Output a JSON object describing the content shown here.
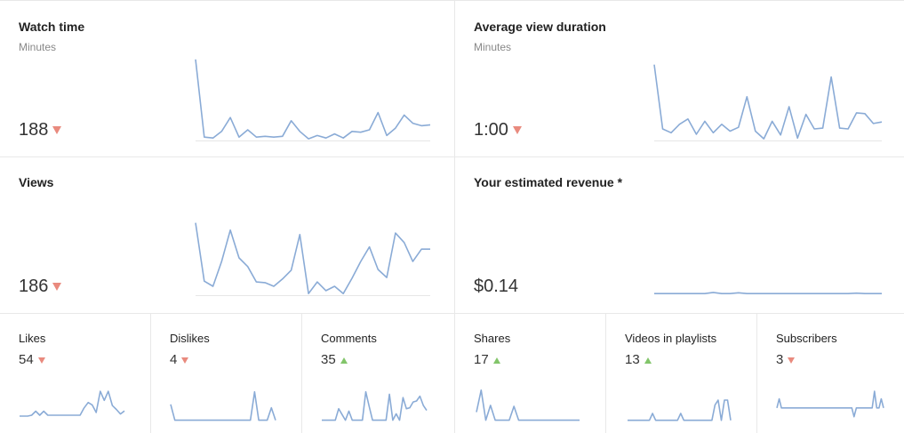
{
  "colors": {
    "line": "#8aabd6",
    "baseline": "#e6e6e6",
    "down": "#e98a7e",
    "up": "#82c56a"
  },
  "cards": {
    "watch_time": {
      "title": "Watch time",
      "subtitle": "Minutes",
      "value": "188",
      "trend": "down-icon",
      "spark": [
        0.98,
        0.03,
        0.02,
        0.1,
        0.27,
        0.03,
        0.12,
        0.03,
        0.04,
        0.03,
        0.04,
        0.23,
        0.1,
        0.01,
        0.05,
        0.02,
        0.07,
        0.02,
        0.1,
        0.09,
        0.12,
        0.33,
        0.05,
        0.14,
        0.3,
        0.2,
        0.17,
        0.18
      ]
    },
    "avg_view_duration": {
      "title": "Average view duration",
      "subtitle": "Minutes",
      "value": "1:00",
      "trend": "down-icon",
      "spark": [
        0.98,
        0.14,
        0.09,
        0.2,
        0.27,
        0.07,
        0.24,
        0.09,
        0.2,
        0.11,
        0.16,
        0.56,
        0.11,
        0.01,
        0.24,
        0.06,
        0.43,
        0.02,
        0.33,
        0.14,
        0.15,
        0.82,
        0.15,
        0.14,
        0.35,
        0.34,
        0.21,
        0.23
      ]
    },
    "views": {
      "title": "Views",
      "value": "186",
      "trend": "down-icon",
      "spark": [
        0.98,
        0.18,
        0.11,
        0.45,
        0.88,
        0.5,
        0.38,
        0.17,
        0.16,
        0.11,
        0.21,
        0.33,
        0.82,
        0.01,
        0.17,
        0.05,
        0.11,
        0.01,
        0.22,
        0.45,
        0.65,
        0.34,
        0.23,
        0.84,
        0.71,
        0.45,
        0.62,
        0.62
      ]
    },
    "revenue": {
      "title": "Your estimated revenue *",
      "value": "$0.14",
      "spark": [
        0.02,
        0.02,
        0.02,
        0.02,
        0.02,
        0.02,
        0.02,
        0.05,
        0.02,
        0.02,
        0.04,
        0.02,
        0.02,
        0.02,
        0.02,
        0.02,
        0.02,
        0.02,
        0.02,
        0.02,
        0.02,
        0.02,
        0.02,
        0.02,
        0.03,
        0.02,
        0.02,
        0.02
      ]
    },
    "likes": {
      "title": "Likes",
      "value": "54",
      "trend": "down-icon",
      "spark": [
        0.03,
        0.03,
        0.03,
        0.06,
        0.19,
        0.06,
        0.19,
        0.06,
        0.06,
        0.06,
        0.06,
        0.06,
        0.06,
        0.06,
        0.06,
        0.06,
        0.3,
        0.48,
        0.4,
        0.15,
        0.85,
        0.55,
        0.85,
        0.38,
        0.25,
        0.1,
        0.2
      ]
    },
    "dislikes": {
      "title": "Dislikes",
      "value": "4",
      "trend": "down-icon",
      "spark": [
        0.48,
        0.01,
        0.01,
        0.01,
        0.01,
        0.01,
        0.01,
        0.01,
        0.01,
        0.01,
        0.01,
        0.01,
        0.01,
        0.01,
        0.01,
        0.01,
        0.01,
        0.01,
        0.01,
        0.01,
        0.85,
        0.01,
        0.01,
        0.01,
        0.38,
        0.01
      ]
    },
    "comments": {
      "title": "Comments",
      "value": "35",
      "trend": "up-icon",
      "spark": [
        0.01,
        0.01,
        0.01,
        0.01,
        0.01,
        0.35,
        0.18,
        0.01,
        0.28,
        0.01,
        0.01,
        0.01,
        0.01,
        0.85,
        0.42,
        0.01,
        0.01,
        0.01,
        0.01,
        0.01,
        0.78,
        0.01,
        0.2,
        0.01,
        0.68,
        0.35,
        0.38,
        0.55,
        0.58,
        0.72,
        0.45,
        0.3
      ]
    },
    "shares": {
      "title": "Shares",
      "value": "17",
      "trend": "up-icon",
      "spark": [
        0.25,
        0.9,
        0.01,
        0.45,
        0.01,
        0.01,
        0.01,
        0.01,
        0.42,
        0.01,
        0.01,
        0.01,
        0.01,
        0.01,
        0.01,
        0.01,
        0.01,
        0.01,
        0.01,
        0.01,
        0.01,
        0.01,
        0.01
      ]
    },
    "videos_in_playlists": {
      "title": "Videos in playlists",
      "value": "13",
      "trend": "up-icon",
      "spark": [
        0.01,
        0.01,
        0.01,
        0.01,
        0.01,
        0.01,
        0.01,
        0.01,
        0.25,
        0.01,
        0.01,
        0.01,
        0.01,
        0.01,
        0.01,
        0.01,
        0.01,
        0.25,
        0.01,
        0.01,
        0.01,
        0.01,
        0.01,
        0.01,
        0.01,
        0.01,
        0.01,
        0.01,
        0.55,
        0.72,
        0.01,
        0.72,
        0.72,
        0.01
      ]
    },
    "subscribers": {
      "title": "Subscribers",
      "value": "3",
      "trend": "down-icon",
      "spark": [
        0.3,
        0.6,
        0.3,
        0.3,
        0.3,
        0.3,
        0.3,
        0.3,
        0.3,
        0.3,
        0.3,
        0.3,
        0.3,
        0.3,
        0.3,
        0.3,
        0.3,
        0.3,
        0.3,
        0.3,
        0.3,
        0.3,
        0.3,
        0.3,
        0.3,
        0.3,
        0.3,
        0.3,
        0.3,
        0.3,
        0.3,
        0.3,
        0.3,
        0.3,
        0.01,
        0.3,
        0.3,
        0.3,
        0.3,
        0.3,
        0.3,
        0.3,
        0.3,
        0.85,
        0.3,
        0.3,
        0.6,
        0.3
      ]
    }
  }
}
